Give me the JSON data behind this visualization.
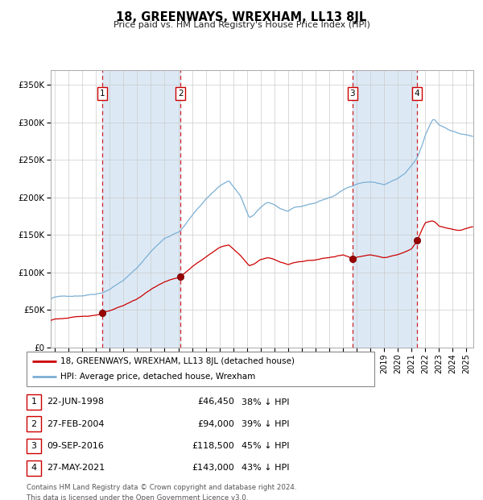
{
  "title": "18, GREENWAYS, WREXHAM, LL13 8JL",
  "subtitle": "Price paid vs. HM Land Registry's House Price Index (HPI)",
  "transactions": [
    {
      "num": 1,
      "date": "22-JUN-1998",
      "price": 46450,
      "pct": "38%",
      "x_val": 1998.47
    },
    {
      "num": 2,
      "date": "27-FEB-2004",
      "price": 94000,
      "pct": "39%",
      "x_val": 2004.16
    },
    {
      "num": 3,
      "date": "09-SEP-2016",
      "price": 118500,
      "pct": "45%",
      "x_val": 2016.69
    },
    {
      "num": 4,
      "date": "27-MAY-2021",
      "price": 143000,
      "pct": "43%",
      "x_val": 2021.4
    }
  ],
  "legend_line1": "18, GREENWAYS, WREXHAM, LL13 8JL (detached house)",
  "legend_line2": "HPI: Average price, detached house, Wrexham",
  "footer1": "Contains HM Land Registry data © Crown copyright and database right 2024.",
  "footer2": "This data is licensed under the Open Government Licence v3.0.",
  "hpi_color": "#7bafd4",
  "price_color": "#cc0000",
  "bg_shade_color": "#dce9f5",
  "ylim": [
    0,
    370000
  ],
  "yticks": [
    0,
    50000,
    100000,
    150000,
    200000,
    250000,
    300000,
    350000
  ],
  "xlim_start": 1994.7,
  "xlim_end": 2025.5
}
